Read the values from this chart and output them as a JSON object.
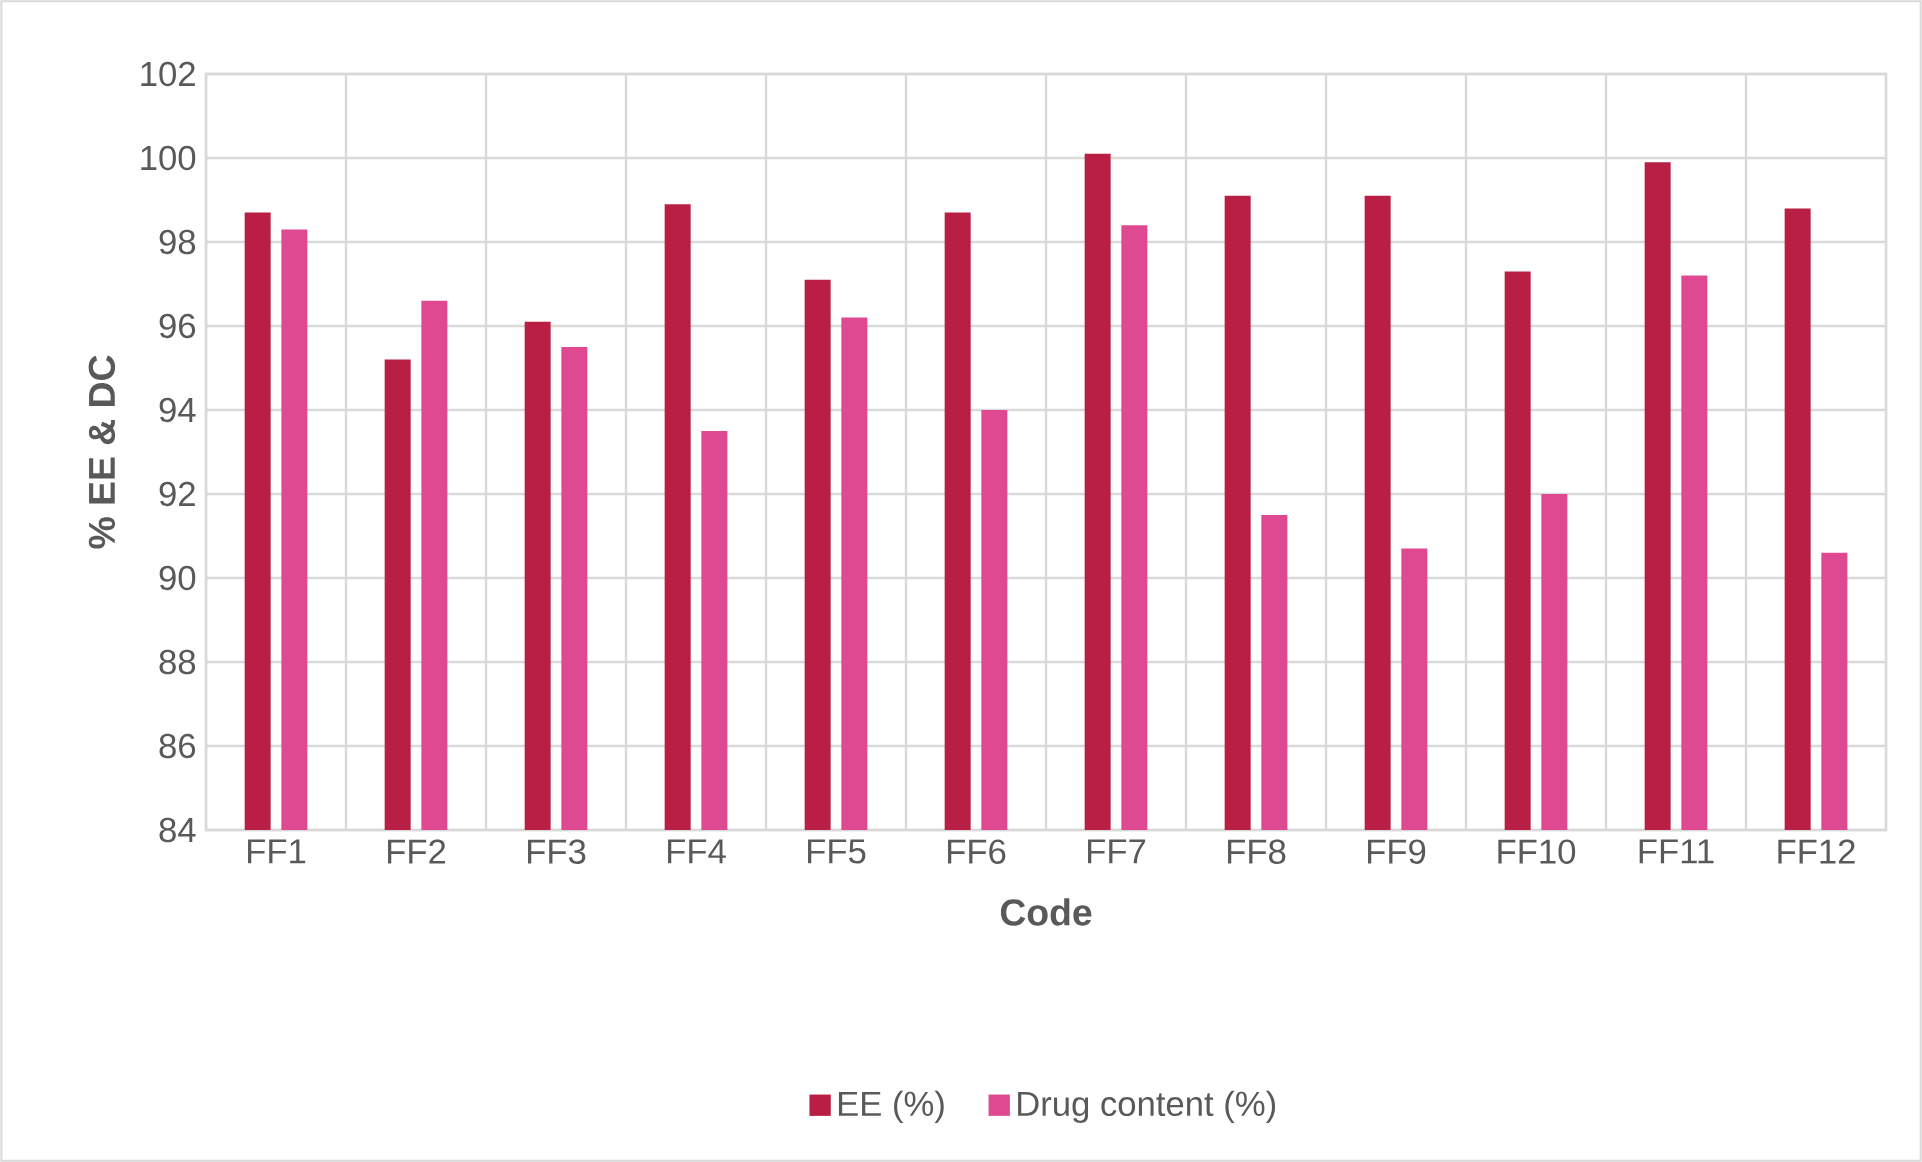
{
  "chart_data": {
    "type": "bar",
    "xlabel": "Code",
    "ylabel": "% EE & DC",
    "categories": [
      "FF1",
      "FF2",
      "FF3",
      "FF4",
      "FF5",
      "FF6",
      "FF7",
      "FF8",
      "FF9",
      "FF10",
      "FF11",
      "FF12"
    ],
    "series": [
      {
        "name": "EE (%)",
        "color": "#b91e45",
        "values": [
          98.7,
          95.2,
          96.1,
          98.9,
          97.1,
          98.7,
          100.1,
          99.1,
          99.1,
          97.3,
          99.9,
          98.8
        ]
      },
      {
        "name": "Drug content (%)",
        "color": "#de4991",
        "values": [
          98.3,
          96.6,
          95.5,
          93.5,
          96.2,
          94.0,
          98.4,
          91.5,
          90.7,
          92.0,
          97.2,
          90.6
        ]
      }
    ],
    "ylim": [
      84,
      102
    ],
    "yticks": [
      84,
      86,
      88,
      90,
      92,
      94,
      96,
      98,
      100,
      102
    ],
    "grid": true,
    "legend": "bottom"
  }
}
